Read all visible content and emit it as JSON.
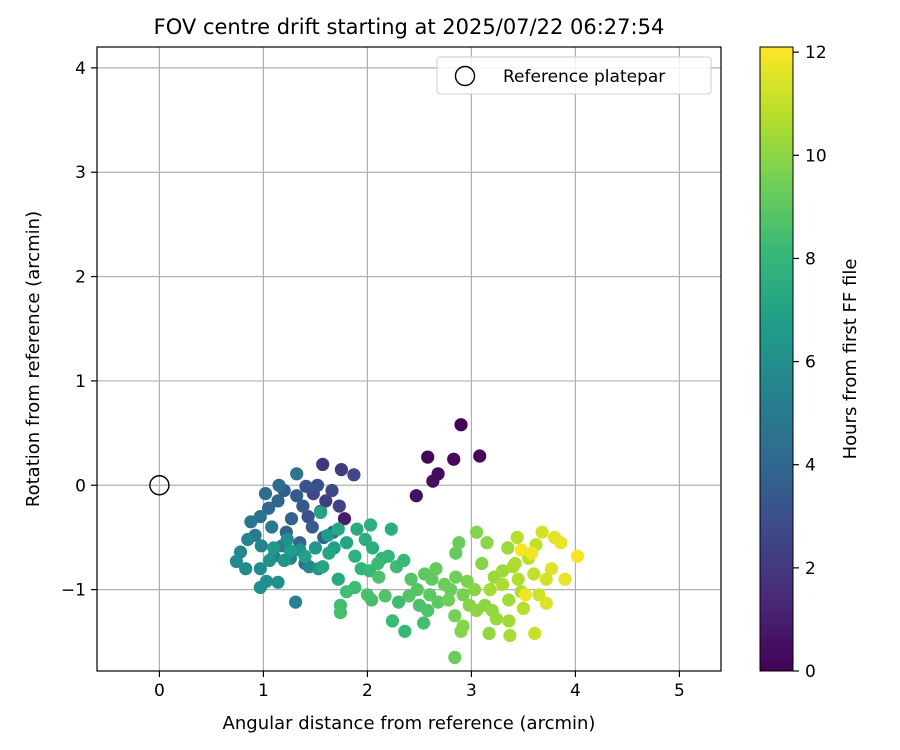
{
  "chart_data": {
    "type": "scatter",
    "title": "FOV centre drift starting at 2025/07/22 06:27:54",
    "xlabel": "Angular distance from reference (arcmin)",
    "ylabel": "Rotation from reference (arcmin)",
    "xlim": [
      -0.6,
      5.4
    ],
    "ylim": [
      -1.78,
      4.2
    ],
    "xticks": [
      0,
      1,
      2,
      3,
      4,
      5
    ],
    "xtick_labels": [
      "0",
      "1",
      "2",
      "3",
      "4",
      "5"
    ],
    "yticks": [
      -1,
      0,
      1,
      2,
      3,
      4
    ],
    "ytick_labels": [
      "−1",
      "0",
      "1",
      "2",
      "3",
      "4"
    ],
    "grid": true,
    "legend": {
      "placement": "top-right",
      "entries": [
        "Reference platepar"
      ]
    },
    "reference_point": {
      "name": "Reference platepar",
      "x": 0,
      "y": 0,
      "marker": "open-circle"
    },
    "colorbar": {
      "label": "Hours from first FF file",
      "min": 0,
      "max": 12.1,
      "ticks": [
        0,
        2,
        4,
        6,
        8,
        10,
        12
      ],
      "tick_labels": [
        "0",
        "2",
        "4",
        "6",
        "8",
        "10",
        "12"
      ],
      "colormap": "viridis",
      "stops": [
        "#440154",
        "#482878",
        "#3e4989",
        "#31688e",
        "#26828e",
        "#1f9e89",
        "#35b779",
        "#6ece58",
        "#b5de2b",
        "#fde725"
      ]
    },
    "points": [
      {
        "x": 2.9,
        "y": 0.58,
        "t": 0.1
      },
      {
        "x": 3.08,
        "y": 0.28,
        "t": 0.2
      },
      {
        "x": 2.58,
        "y": 0.27,
        "t": 0.2
      },
      {
        "x": 2.83,
        "y": 0.25,
        "t": 0.3
      },
      {
        "x": 2.68,
        "y": 0.11,
        "t": 0.3
      },
      {
        "x": 2.63,
        "y": 0.04,
        "t": 0.4
      },
      {
        "x": 2.47,
        "y": -0.1,
        "t": 0.5
      },
      {
        "x": 1.78,
        "y": -0.32,
        "t": 0.9
      },
      {
        "x": 1.57,
        "y": 0.2,
        "t": 2.0
      },
      {
        "x": 1.75,
        "y": 0.15,
        "t": 2.1
      },
      {
        "x": 1.87,
        "y": 0.1,
        "t": 2.6
      },
      {
        "x": 1.73,
        "y": -0.2,
        "t": 2.5
      },
      {
        "x": 1.6,
        "y": -0.15,
        "t": 2.3
      },
      {
        "x": 1.48,
        "y": -0.08,
        "t": 2.6
      },
      {
        "x": 1.66,
        "y": -0.05,
        "t": 2.7
      },
      {
        "x": 1.55,
        "y": -0.25,
        "t": 2.8
      },
      {
        "x": 1.43,
        "y": -0.3,
        "t": 3.0
      },
      {
        "x": 1.52,
        "y": 0.0,
        "t": 3.0
      },
      {
        "x": 1.41,
        "y": -0.01,
        "t": 3.2
      },
      {
        "x": 1.38,
        "y": -0.2,
        "t": 3.4
      },
      {
        "x": 1.32,
        "y": -0.1,
        "t": 3.5
      },
      {
        "x": 1.2,
        "y": -0.05,
        "t": 3.6
      },
      {
        "x": 1.27,
        "y": -0.32,
        "t": 3.7
      },
      {
        "x": 1.14,
        "y": -0.15,
        "t": 3.9
      },
      {
        "x": 1.05,
        "y": -0.22,
        "t": 4.1
      },
      {
        "x": 1.22,
        "y": -0.45,
        "t": 3.9
      },
      {
        "x": 1.35,
        "y": -0.55,
        "t": 4.0
      },
      {
        "x": 1.47,
        "y": -0.4,
        "t": 3.6
      },
      {
        "x": 1.58,
        "y": -0.5,
        "t": 3.8
      },
      {
        "x": 1.67,
        "y": -0.45,
        "t": 3.5
      },
      {
        "x": 1.4,
        "y": -0.75,
        "t": 4.2
      },
      {
        "x": 1.32,
        "y": 0.11,
        "t": 4.7
      },
      {
        "x": 1.15,
        "y": 0.0,
        "t": 4.3
      },
      {
        "x": 1.02,
        "y": -0.08,
        "t": 4.4
      },
      {
        "x": 0.97,
        "y": -0.3,
        "t": 4.6
      },
      {
        "x": 0.88,
        "y": -0.35,
        "t": 4.7
      },
      {
        "x": 0.92,
        "y": -0.48,
        "t": 4.9
      },
      {
        "x": 1.08,
        "y": -0.4,
        "t": 4.8
      },
      {
        "x": 1.18,
        "y": -0.58,
        "t": 5.0
      },
      {
        "x": 1.26,
        "y": -0.7,
        "t": 5.1
      },
      {
        "x": 1.1,
        "y": -0.68,
        "t": 5.3
      },
      {
        "x": 0.98,
        "y": -0.58,
        "t": 5.4
      },
      {
        "x": 0.85,
        "y": -0.52,
        "t": 5.5
      },
      {
        "x": 0.78,
        "y": -0.64,
        "t": 5.6
      },
      {
        "x": 0.74,
        "y": -0.73,
        "t": 5.7
      },
      {
        "x": 0.83,
        "y": -0.8,
        "t": 5.8
      },
      {
        "x": 0.97,
        "y": -0.8,
        "t": 5.9
      },
      {
        "x": 1.03,
        "y": -0.92,
        "t": 6.0
      },
      {
        "x": 0.97,
        "y": -0.98,
        "t": 6.0
      },
      {
        "x": 1.14,
        "y": -0.93,
        "t": 6.1
      },
      {
        "x": 1.31,
        "y": -1.12,
        "t": 5.4
      },
      {
        "x": 1.44,
        "y": -0.78,
        "t": 5.6
      },
      {
        "x": 1.53,
        "y": -0.8,
        "t": 6.2
      },
      {
        "x": 1.35,
        "y": -0.62,
        "t": 6.3
      },
      {
        "x": 1.23,
        "y": -0.52,
        "t": 6.1
      },
      {
        "x": 1.5,
        "y": -0.6,
        "t": 6.5
      },
      {
        "x": 1.62,
        "y": -0.48,
        "t": 6.6
      },
      {
        "x": 1.55,
        "y": -0.26,
        "t": 7.0
      },
      {
        "x": 1.68,
        "y": -0.6,
        "t": 6.8
      },
      {
        "x": 1.8,
        "y": -0.55,
        "t": 7.1
      },
      {
        "x": 1.63,
        "y": -0.65,
        "t": 7.0
      },
      {
        "x": 1.4,
        "y": -0.68,
        "t": 6.9
      },
      {
        "x": 1.26,
        "y": -0.63,
        "t": 6.7
      },
      {
        "x": 1.1,
        "y": -0.6,
        "t": 6.5
      },
      {
        "x": 1.2,
        "y": -0.72,
        "t": 6.4
      },
      {
        "x": 1.06,
        "y": -0.72,
        "t": 6.2
      },
      {
        "x": 1.72,
        "y": -0.42,
        "t": 7.2
      },
      {
        "x": 1.72,
        "y": -0.9,
        "t": 7.3
      },
      {
        "x": 1.57,
        "y": -0.78,
        "t": 7.1
      },
      {
        "x": 1.9,
        "y": -0.42,
        "t": 7.4
      },
      {
        "x": 1.98,
        "y": -0.52,
        "t": 7.5
      },
      {
        "x": 2.03,
        "y": -0.38,
        "t": 7.6
      },
      {
        "x": 1.88,
        "y": -0.68,
        "t": 7.7
      },
      {
        "x": 2.05,
        "y": -0.6,
        "t": 7.6
      },
      {
        "x": 2.14,
        "y": -0.7,
        "t": 7.8
      },
      {
        "x": 2.23,
        "y": -0.42,
        "t": 7.5
      },
      {
        "x": 1.94,
        "y": -0.8,
        "t": 7.9
      },
      {
        "x": 2.02,
        "y": -0.82,
        "t": 8.1
      },
      {
        "x": 2.1,
        "y": -0.75,
        "t": 8.2
      },
      {
        "x": 2.2,
        "y": -0.68,
        "t": 8.0
      },
      {
        "x": 2.28,
        "y": -0.78,
        "t": 8.3
      },
      {
        "x": 2.35,
        "y": -0.72,
        "t": 8.1
      },
      {
        "x": 1.8,
        "y": -1.02,
        "t": 8.4
      },
      {
        "x": 1.74,
        "y": -1.15,
        "t": 8.4
      },
      {
        "x": 1.74,
        "y": -1.22,
        "t": 8.5
      },
      {
        "x": 1.88,
        "y": -0.98,
        "t": 8.3
      },
      {
        "x": 2.0,
        "y": -1.05,
        "t": 8.6
      },
      {
        "x": 2.04,
        "y": -1.1,
        "t": 8.5
      },
      {
        "x": 2.17,
        "y": -1.06,
        "t": 8.7
      },
      {
        "x": 2.11,
        "y": -0.88,
        "t": 8.6
      },
      {
        "x": 2.24,
        "y": -1.3,
        "t": 8.2
      },
      {
        "x": 2.36,
        "y": -1.4,
        "t": 8.1
      },
      {
        "x": 2.3,
        "y": -1.12,
        "t": 8.3
      },
      {
        "x": 2.4,
        "y": -1.06,
        "t": 8.8
      },
      {
        "x": 2.42,
        "y": -0.9,
        "t": 8.8
      },
      {
        "x": 2.48,
        "y": -1.0,
        "t": 8.9
      },
      {
        "x": 2.5,
        "y": -1.15,
        "t": 8.6
      },
      {
        "x": 2.58,
        "y": -1.2,
        "t": 8.7
      },
      {
        "x": 2.54,
        "y": -1.32,
        "t": 8.4
      },
      {
        "x": 2.6,
        "y": -1.05,
        "t": 9.0
      },
      {
        "x": 2.55,
        "y": -0.85,
        "t": 9.0
      },
      {
        "x": 2.62,
        "y": -0.9,
        "t": 9.1
      },
      {
        "x": 2.66,
        "y": -0.8,
        "t": 9.2
      },
      {
        "x": 2.68,
        "y": -1.12,
        "t": 9.0
      },
      {
        "x": 2.74,
        "y": -0.95,
        "t": 9.3
      },
      {
        "x": 2.8,
        "y": -1.0,
        "t": 9.3
      },
      {
        "x": 2.85,
        "y": -0.65,
        "t": 9.2
      },
      {
        "x": 2.88,
        "y": -0.55,
        "t": 9.3
      },
      {
        "x": 2.85,
        "y": -0.88,
        "t": 9.4
      },
      {
        "x": 2.78,
        "y": -1.1,
        "t": 9.4
      },
      {
        "x": 2.84,
        "y": -1.25,
        "t": 9.5
      },
      {
        "x": 2.92,
        "y": -1.05,
        "t": 9.6
      },
      {
        "x": 2.96,
        "y": -0.92,
        "t": 9.7
      },
      {
        "x": 2.9,
        "y": -1.4,
        "t": 9.8
      },
      {
        "x": 2.92,
        "y": -1.35,
        "t": 9.9
      },
      {
        "x": 2.84,
        "y": -1.65,
        "t": 9.3
      },
      {
        "x": 2.98,
        "y": -1.15,
        "t": 9.8
      },
      {
        "x": 3.03,
        "y": -1.0,
        "t": 9.9
      },
      {
        "x": 3.05,
        "y": -0.45,
        "t": 9.8
      },
      {
        "x": 3.1,
        "y": -0.75,
        "t": 9.9
      },
      {
        "x": 3.15,
        "y": -0.55,
        "t": 10.0
      },
      {
        "x": 3.13,
        "y": -1.15,
        "t": 10.0
      },
      {
        "x": 3.17,
        "y": -1.42,
        "t": 10.1
      },
      {
        "x": 3.05,
        "y": -1.2,
        "t": 10.0
      },
      {
        "x": 3.2,
        "y": -1.2,
        "t": 10.1
      },
      {
        "x": 3.24,
        "y": -1.28,
        "t": 10.2
      },
      {
        "x": 3.22,
        "y": -0.88,
        "t": 10.2
      },
      {
        "x": 3.3,
        "y": -0.82,
        "t": 10.3
      },
      {
        "x": 3.35,
        "y": -0.6,
        "t": 10.3
      },
      {
        "x": 3.36,
        "y": -1.1,
        "t": 10.4
      },
      {
        "x": 3.36,
        "y": -1.3,
        "t": 10.4
      },
      {
        "x": 3.37,
        "y": -1.44,
        "t": 10.5
      },
      {
        "x": 3.42,
        "y": -0.75,
        "t": 10.6
      },
      {
        "x": 3.45,
        "y": -0.9,
        "t": 10.7
      },
      {
        "x": 3.48,
        "y": -1.02,
        "t": 10.7
      },
      {
        "x": 3.44,
        "y": -0.5,
        "t": 10.8
      },
      {
        "x": 3.5,
        "y": -1.18,
        "t": 10.8
      },
      {
        "x": 3.55,
        "y": -0.7,
        "t": 10.9
      },
      {
        "x": 3.6,
        "y": -0.85,
        "t": 11.0
      },
      {
        "x": 3.62,
        "y": -0.57,
        "t": 11.0
      },
      {
        "x": 3.61,
        "y": -1.42,
        "t": 11.1
      },
      {
        "x": 3.65,
        "y": -1.05,
        "t": 11.2
      },
      {
        "x": 3.68,
        "y": -0.45,
        "t": 11.3
      },
      {
        "x": 3.72,
        "y": -0.9,
        "t": 11.3
      },
      {
        "x": 3.72,
        "y": -1.13,
        "t": 11.5
      },
      {
        "x": 3.77,
        "y": -0.8,
        "t": 11.5
      },
      {
        "x": 3.8,
        "y": -0.5,
        "t": 11.6
      },
      {
        "x": 3.86,
        "y": -0.55,
        "t": 11.7
      },
      {
        "x": 3.9,
        "y": -0.9,
        "t": 11.7
      },
      {
        "x": 4.02,
        "y": -0.68,
        "t": 12.0
      },
      {
        "x": 3.58,
        "y": -0.65,
        "t": 11.9
      },
      {
        "x": 3.52,
        "y": -1.05,
        "t": 11.8
      },
      {
        "x": 3.48,
        "y": -0.62,
        "t": 12.0
      },
      {
        "x": 3.3,
        "y": -0.95,
        "t": 10.6
      },
      {
        "x": 3.18,
        "y": -1.0,
        "t": 10.5
      },
      {
        "x": 3.4,
        "y": -0.78,
        "t": 10.6
      }
    ]
  }
}
